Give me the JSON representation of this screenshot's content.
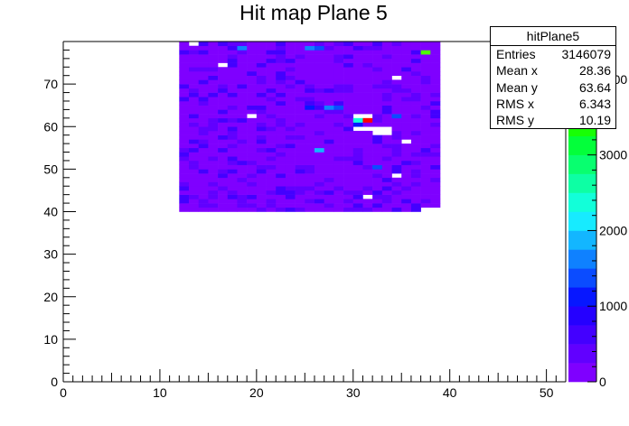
{
  "chart_data": {
    "type": "heatmap",
    "title": "Hit map Plane 5",
    "xlabel": "",
    "ylabel": "",
    "xlim": [
      0,
      52
    ],
    "ylim": [
      0,
      80
    ],
    "x_ticks": [
      0,
      10,
      20,
      30,
      40,
      50
    ],
    "y_ticks": [
      0,
      10,
      20,
      30,
      40,
      50,
      60,
      70
    ],
    "z_range": [
      0,
      4500
    ],
    "z_ticks": [
      0,
      1000,
      2000,
      3000,
      4000
    ],
    "z_tick_labels": [
      "0",
      "1000",
      "2000",
      "3000",
      "4000"
    ],
    "palette": [
      "#7f00ff",
      "#6100ff",
      "#4300ff",
      "#2500ff",
      "#0717ff",
      "#0b4cff",
      "#0f81ff",
      "#13b6ff",
      "#17ebff",
      "#12ffd9",
      "#0dffa4",
      "#08ff6f",
      "#03ff3a",
      "#18ff05",
      "#4dff03",
      "#82ff02",
      "#b7ff01",
      "#ecff00"
    ],
    "cells": {
      "x_range": [
        12.5,
        38.5
      ],
      "y_range": [
        40.5,
        79.5
      ],
      "base_value": 80,
      "description_values": "most bins near 0-700 hits",
      "hot": [
        {
          "x": 31.5,
          "y": 61.5,
          "v": 4800
        },
        {
          "x": 30.5,
          "y": 61.5,
          "v": 2300
        },
        {
          "x": 37.5,
          "y": 77.5,
          "v": 3700
        },
        {
          "x": 26.5,
          "y": 54.5,
          "v": 1900
        },
        {
          "x": 27.5,
          "y": 64.5,
          "v": 1600
        },
        {
          "x": 18.5,
          "y": 78.5,
          "v": 1500
        },
        {
          "x": 25.5,
          "y": 78.5,
          "v": 1500
        },
        {
          "x": 26.5,
          "y": 78.5,
          "v": 1400
        },
        {
          "x": 28.5,
          "y": 64.5,
          "v": 1400
        },
        {
          "x": 32.5,
          "y": 50.5,
          "v": 1300
        },
        {
          "x": 34.5,
          "y": 62.5,
          "v": 1300
        },
        {
          "x": 25.5,
          "y": 64.5,
          "v": 1200
        },
        {
          "x": 30.5,
          "y": 60.5,
          "v": 1100
        }
      ],
      "empty": [
        {
          "x": 13.5,
          "y": 79.5
        },
        {
          "x": 16.5,
          "y": 74.5
        },
        {
          "x": 19.5,
          "y": 62.5
        },
        {
          "x": 30.5,
          "y": 62.5
        },
        {
          "x": 31.5,
          "y": 62.5
        },
        {
          "x": 30.5,
          "y": 59.5
        },
        {
          "x": 31.5,
          "y": 59.5
        },
        {
          "x": 32.5,
          "y": 59.5
        },
        {
          "x": 33.5,
          "y": 59.5
        },
        {
          "x": 32.5,
          "y": 58.5
        },
        {
          "x": 33.5,
          "y": 58.5
        },
        {
          "x": 34.5,
          "y": 71.5
        },
        {
          "x": 34.5,
          "y": 48.5
        },
        {
          "x": 35.5,
          "y": 56.5
        },
        {
          "x": 31.5,
          "y": 43.5
        },
        {
          "x": 37.5,
          "y": 40.5
        },
        {
          "x": 38.5,
          "y": 40.5
        }
      ]
    },
    "stats": {
      "name": "hitPlane5",
      "rows": [
        {
          "label": "Entries",
          "value": "3146079"
        },
        {
          "label": "Mean x",
          "value": "28.36"
        },
        {
          "label": "Mean y",
          "value": "63.64"
        },
        {
          "label": "RMS x",
          "value": "6.343"
        },
        {
          "label": "RMS y",
          "value": "10.19"
        }
      ]
    }
  }
}
